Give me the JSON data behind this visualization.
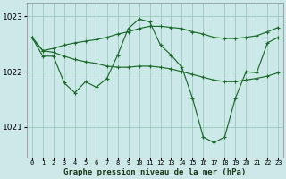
{
  "bg_color": "#cce8e8",
  "plot_bg": "#cde8e8",
  "grid_color": "#99ccbb",
  "line_color": "#1a6b2a",
  "xlabel": "Graphe pression niveau de la mer (hPa)",
  "ylim": [
    1020.45,
    1023.25
  ],
  "yticks": [
    1021,
    1022,
    1023
  ],
  "xlim": [
    -0.5,
    23.5
  ],
  "curve_spike": [
    1022.62,
    1022.28,
    1022.28,
    1021.8,
    1021.62,
    1021.82,
    1021.72,
    1021.88,
    1022.3,
    1022.78,
    1022.95,
    1022.9,
    1022.48,
    1022.3,
    1022.08,
    1021.52,
    1020.82,
    1020.72,
    1020.82,
    1021.52,
    1022.0,
    1021.98,
    1022.52,
    1022.62
  ],
  "curve_diag_up": [
    1022.62,
    1022.38,
    1022.42,
    1022.48,
    1022.52,
    1022.55,
    1022.58,
    1022.62,
    1022.68,
    1022.72,
    1022.78,
    1022.82,
    1022.82,
    1022.8,
    1022.78,
    1022.72,
    1022.68,
    1022.62,
    1022.6,
    1022.6,
    1022.62,
    1022.65,
    1022.72,
    1022.8
  ],
  "curve_diag_down": [
    1022.62,
    1022.38,
    1022.35,
    1022.28,
    1022.22,
    1022.18,
    1022.15,
    1022.1,
    1022.08,
    1022.08,
    1022.1,
    1022.1,
    1022.08,
    1022.05,
    1022.0,
    1021.95,
    1021.9,
    1021.85,
    1021.82,
    1021.82,
    1021.85,
    1021.88,
    1021.92,
    1021.98
  ]
}
